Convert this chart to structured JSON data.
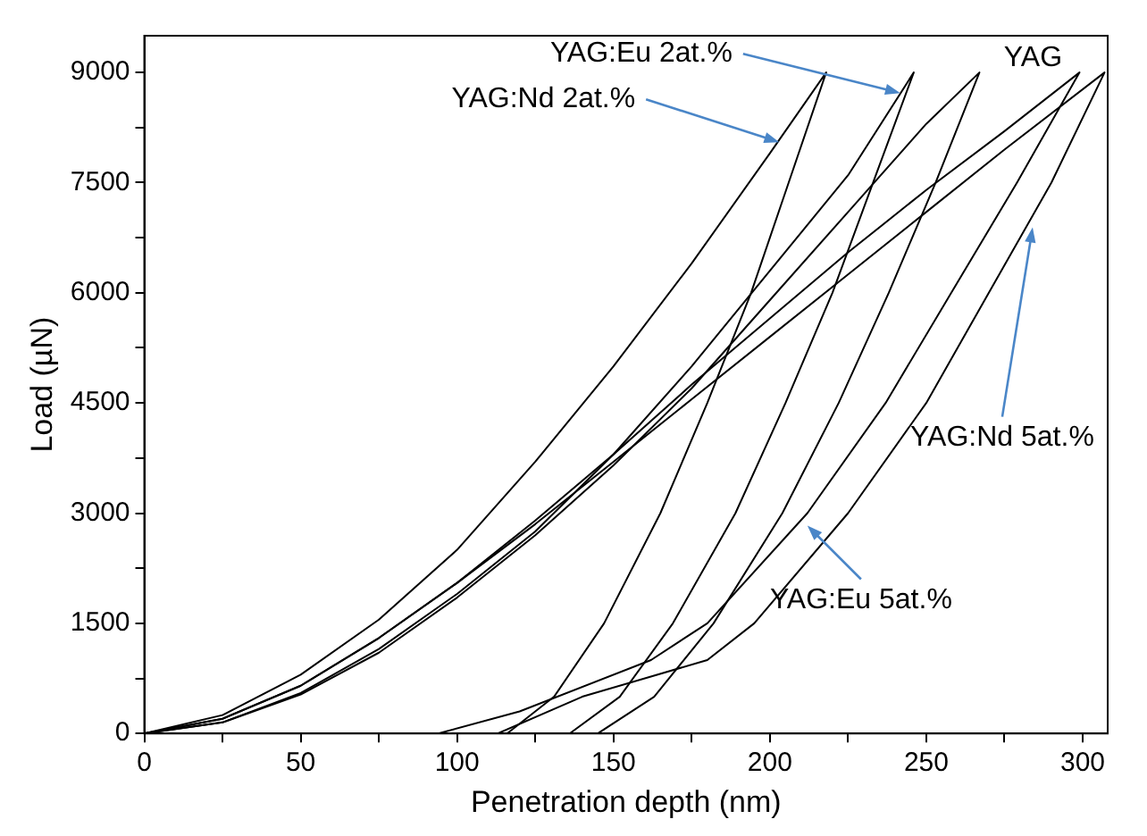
{
  "chart_data": {
    "type": "line",
    "xlabel": "Penetration depth (nm)",
    "ylabel": "Load (µN)",
    "xlim": [
      0,
      308
    ],
    "ylim": [
      0,
      9500
    ],
    "xticks": [
      0,
      {
        "value": 25,
        "label": null
      },
      50,
      {
        "value": 75,
        "label": null
      },
      100,
      {
        "value": 125,
        "label": null
      },
      150,
      {
        "value": 175,
        "label": null
      },
      200,
      {
        "value": 225,
        "label": null
      },
      250,
      {
        "value": 275,
        "label": null
      },
      300
    ],
    "yticks": [
      0,
      {
        "value": 750,
        "label": null
      },
      1500,
      {
        "value": 2250,
        "label": null
      },
      3000,
      {
        "value": 3750,
        "label": null
      },
      4500,
      {
        "value": 5250,
        "label": null
      },
      6000,
      {
        "value": 6750,
        "label": null
      },
      7500,
      {
        "value": 8250,
        "label": null
      },
      9000
    ],
    "grid": false,
    "legend": false,
    "marker": "none",
    "line_style": "solid",
    "series": [
      {
        "color": "#000000",
        "x": [
          0,
          25,
          50,
          75,
          100,
          125,
          150,
          175,
          200,
          218,
          206,
          194,
          180,
          165,
          147,
          131,
          116
        ],
        "values": [
          0,
          250,
          800,
          1550,
          2500,
          3700,
          5000,
          6400,
          7900,
          9000,
          7500,
          6000,
          4500,
          3000,
          1500,
          500,
          0
        ]
      },
      {
        "color": "#000000",
        "x": [
          0,
          25,
          50,
          75,
          100,
          125,
          150,
          175,
          200,
          225,
          246,
          233,
          220,
          205,
          189,
          169,
          152,
          136
        ],
        "values": [
          0,
          150,
          550,
          1150,
          1900,
          2750,
          3800,
          5000,
          6300,
          7600,
          9000,
          7500,
          6000,
          4500,
          3000,
          1500,
          500,
          0
        ]
      },
      {
        "color": "#000000",
        "x": [
          0,
          25,
          50,
          75,
          100,
          125,
          150,
          175,
          200,
          225,
          250,
          267,
          253,
          238,
          222,
          204,
          182,
          163,
          145
        ],
        "values": [
          0,
          150,
          530,
          1100,
          1850,
          2700,
          3650,
          4700,
          5900,
          7100,
          8300,
          9000,
          7500,
          6000,
          4500,
          3000,
          1500,
          500,
          0
        ]
      },
      {
        "color": "#000000",
        "x": [
          0,
          25,
          50,
          75,
          100,
          125,
          150,
          175,
          200,
          225,
          250,
          275,
          299,
          279,
          258,
          237,
          212,
          180,
          162,
          120,
          94
        ],
        "values": [
          0,
          200,
          650,
          1300,
          2050,
          2900,
          3800,
          4750,
          5650,
          6550,
          7400,
          8200,
          9000,
          7500,
          6000,
          4500,
          3000,
          1500,
          1000,
          300,
          0
        ]
      },
      {
        "color": "#000000",
        "x": [
          0,
          25,
          50,
          75,
          100,
          125,
          150,
          175,
          200,
          225,
          250,
          275,
          307,
          290,
          270,
          250,
          225,
          195,
          180,
          140,
          113
        ],
        "values": [
          0,
          200,
          650,
          1300,
          2050,
          2850,
          3700,
          4550,
          5400,
          6250,
          7100,
          7950,
          9000,
          7500,
          6000,
          4500,
          3000,
          1500,
          1000,
          500,
          0
        ]
      }
    ],
    "annotations": [
      {
        "text": "YAG:Eu 2at.%",
        "x": 241.7,
        "y": 8720
      },
      {
        "text": "YAG:Nd 2at.%",
        "x": 203,
        "y": 8050
      },
      {
        "text": "YAG",
        "x": 267,
        "y": 9000
      },
      {
        "text": "YAG:Nd 5at.%",
        "x": 284,
        "y": 6890
      },
      {
        "text": "YAG:Eu 5at.%",
        "x": 212,
        "y": 2830
      }
    ]
  }
}
